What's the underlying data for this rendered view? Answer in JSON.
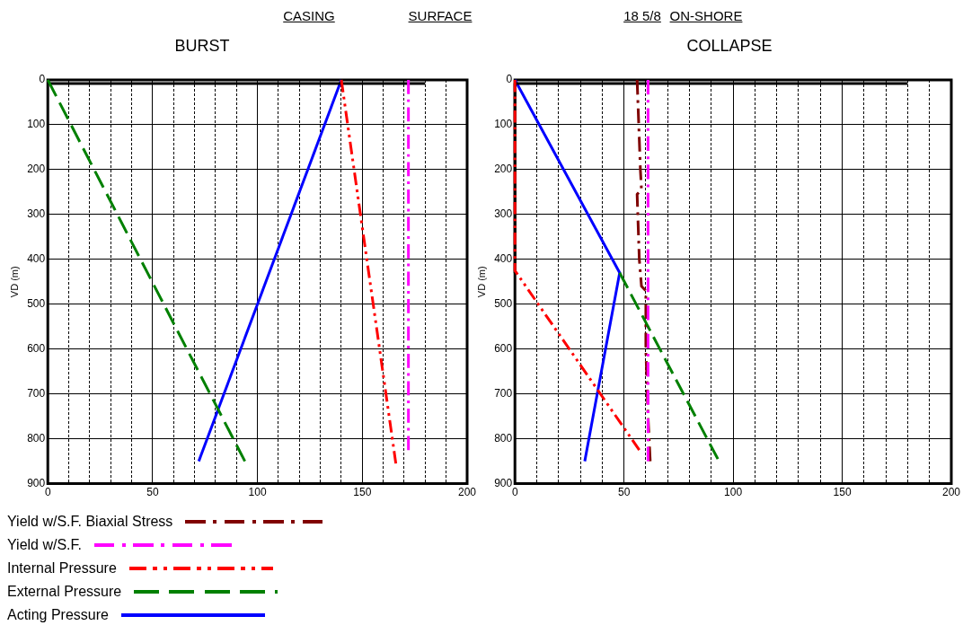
{
  "chart_data": [
    {
      "type": "line",
      "title": "BURST",
      "ylabel": "VD (m)",
      "annotations": [
        "CASING",
        "SURFACE"
      ],
      "xlim": [
        0,
        200
      ],
      "xticks": [
        0,
        {
          "value": 10,
          "label": null
        },
        {
          "value": 20,
          "label": null
        },
        {
          "value": 30,
          "label": null
        },
        {
          "value": 40,
          "label": null
        },
        50,
        {
          "value": 60,
          "label": null
        },
        {
          "value": 70,
          "label": null
        },
        {
          "value": 80,
          "label": null
        },
        {
          "value": 90,
          "label": null
        },
        100,
        {
          "value": 110,
          "label": null
        },
        {
          "value": 120,
          "label": null
        },
        {
          "value": 130,
          "label": null
        },
        {
          "value": 140,
          "label": null
        },
        150,
        {
          "value": 160,
          "label": null
        },
        {
          "value": 170,
          "label": null
        },
        {
          "value": 180,
          "label": null
        },
        {
          "value": 190,
          "label": null
        },
        200
      ],
      "ylim": [
        900,
        0
      ],
      "yticks": [
        0,
        100,
        200,
        300,
        400,
        500,
        600,
        700,
        800,
        900
      ],
      "grid": true,
      "marker": "none",
      "legend": false,
      "series": [
        {
          "color": "#ff00ff",
          "line_style": "dashed",
          "x": [
            172,
            172
          ],
          "values": [
            0,
            825
          ]
        },
        {
          "color": "#ff0000",
          "line_style": "dashed",
          "x": [
            140,
            166
          ],
          "values": [
            0,
            855
          ]
        },
        {
          "color": "#008000",
          "line_style": "dashed",
          "x": [
            0,
            94
          ],
          "values": [
            0,
            850
          ]
        },
        {
          "color": "#0000ff",
          "line_style": "solid",
          "x": [
            140,
            72
          ],
          "values": [
            0,
            850
          ]
        },
        {
          "color": "#000000",
          "line_style": "solid",
          "x": [
            0,
            180
          ],
          "values": [
            8,
            8
          ]
        }
      ]
    },
    {
      "type": "line",
      "title": "COLLAPSE",
      "ylabel": "VD (m)",
      "annotations": [
        "18 5/8",
        "ON-SHORE"
      ],
      "xlim": [
        0,
        200
      ],
      "xticks": [
        0,
        {
          "value": 10,
          "label": null
        },
        {
          "value": 20,
          "label": null
        },
        {
          "value": 30,
          "label": null
        },
        {
          "value": 40,
          "label": null
        },
        50,
        {
          "value": 60,
          "label": null
        },
        {
          "value": 70,
          "label": null
        },
        {
          "value": 80,
          "label": null
        },
        {
          "value": 90,
          "label": null
        },
        100,
        {
          "value": 110,
          "label": null
        },
        {
          "value": 120,
          "label": null
        },
        {
          "value": 130,
          "label": null
        },
        {
          "value": 140,
          "label": null
        },
        150,
        {
          "value": 160,
          "label": null
        },
        {
          "value": 170,
          "label": null
        },
        {
          "value": 180,
          "label": null
        },
        {
          "value": 190,
          "label": null
        },
        200
      ],
      "ylim": [
        900,
        0
      ],
      "yticks": [
        0,
        100,
        200,
        300,
        400,
        500,
        600,
        700,
        800,
        900
      ],
      "grid": true,
      "marker": "none",
      "legend": "bottom",
      "series": [
        {
          "name": "Yield w/S.F. Biaxial Stress",
          "color": "#800000",
          "line_style": "dashed",
          "x": [
            56,
            57.5,
            58,
            56,
            57,
            58,
            60,
            60,
            61,
            62
          ],
          "values": [
            0,
            200,
            245,
            255,
            400,
            460,
            470,
            600,
            750,
            850
          ]
        },
        {
          "name": "Yield w/S.F.",
          "color": "#ff00ff",
          "line_style": "dashed",
          "x": [
            61,
            61
          ],
          "values": [
            0,
            850
          ]
        },
        {
          "name": "Internal Pressure",
          "color": "#ff0000",
          "line_style": "dashed",
          "x": [
            0,
            0,
            57
          ],
          "values": [
            0,
            425,
            825
          ]
        },
        {
          "name": "External Pressure",
          "color": "#008000",
          "line_style": "dashed",
          "x": [
            48,
            93
          ],
          "values": [
            430,
            845
          ]
        },
        {
          "name": "Acting Pressure",
          "color": "#0000ff",
          "line_style": "solid",
          "x": [
            0,
            48,
            32
          ],
          "values": [
            0,
            430,
            850
          ]
        },
        {
          "color": "#000000",
          "line_style": "solid",
          "x": [
            180,
            0,
            0
          ],
          "values": [
            8,
            8,
            430
          ]
        }
      ]
    }
  ]
}
